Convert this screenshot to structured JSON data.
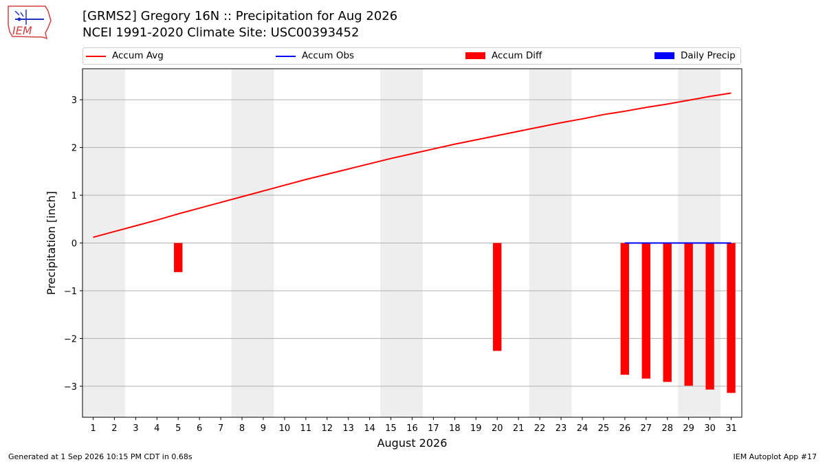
{
  "logo": {
    "text": "IEM"
  },
  "header": {
    "title_line1": "[GRMS2] Gregory 16N :: Precipitation for Aug 2026",
    "title_line2": "NCEI 1991-2020 Climate Site: USC00393452"
  },
  "legend": [
    {
      "label": "Accum Avg",
      "kind": "line",
      "color": "#ff0000"
    },
    {
      "label": "Accum Obs",
      "kind": "line",
      "color": "#0000ff"
    },
    {
      "label": "Accum Diff",
      "kind": "patch",
      "color": "#ff0000"
    },
    {
      "label": "Daily Precip",
      "kind": "patch",
      "color": "#0000ff"
    }
  ],
  "footer": {
    "left": "Generated at 1 Sep 2026 10:15 PM CDT in 0.68s",
    "right": "IEM Autoplot App #17"
  },
  "chart_data": {
    "type": "line",
    "xlabel": "August 2026",
    "ylabel": "Precipitation [inch]",
    "xlim": [
      0.5,
      31.5
    ],
    "ylim": [
      -3.65,
      3.65
    ],
    "x_ticks": [
      1,
      2,
      3,
      4,
      5,
      6,
      7,
      8,
      9,
      10,
      11,
      12,
      13,
      14,
      15,
      16,
      17,
      18,
      19,
      20,
      21,
      22,
      23,
      24,
      25,
      26,
      27,
      28,
      29,
      30,
      31
    ],
    "y_ticks": [
      -3,
      -2,
      -1,
      0,
      1,
      2,
      3
    ],
    "y_tick_labels": [
      "−3",
      "−2",
      "−1",
      "0",
      "1",
      "2",
      "3"
    ],
    "grid": "horizontal",
    "legend_position": "top",
    "weekend_shading": [
      [
        0.5,
        2.5
      ],
      [
        7.5,
        9.5
      ],
      [
        14.5,
        16.5
      ],
      [
        21.5,
        23.5
      ],
      [
        28.5,
        30.5
      ]
    ],
    "series": [
      {
        "name": "Accum Avg",
        "kind": "line",
        "color": "#ff0000",
        "x": [
          1,
          2,
          3,
          4,
          5,
          6,
          7,
          8,
          9,
          10,
          11,
          12,
          13,
          14,
          15,
          16,
          17,
          18,
          19,
          20,
          21,
          22,
          23,
          24,
          25,
          26,
          27,
          28,
          29,
          30,
          31
        ],
        "values": [
          0.12,
          0.24,
          0.36,
          0.48,
          0.61,
          0.73,
          0.85,
          0.97,
          1.09,
          1.21,
          1.33,
          1.44,
          1.55,
          1.66,
          1.77,
          1.87,
          1.97,
          2.07,
          2.16,
          2.25,
          2.34,
          2.43,
          2.52,
          2.6,
          2.69,
          2.76,
          2.84,
          2.91,
          2.99,
          3.07,
          3.14
        ]
      },
      {
        "name": "Accum Obs",
        "kind": "line",
        "color": "#0000ff",
        "x": [
          26,
          27,
          28,
          29,
          30,
          31
        ],
        "values": [
          0,
          0,
          0,
          0,
          0,
          0
        ]
      },
      {
        "name": "Accum Diff",
        "kind": "bar",
        "color": "#ff0000",
        "x": [
          5,
          20,
          26,
          27,
          28,
          29,
          30,
          31
        ],
        "values": [
          -0.61,
          -2.26,
          -2.76,
          -2.84,
          -2.91,
          -2.99,
          -3.07,
          -3.14
        ]
      },
      {
        "name": "Daily Precip",
        "kind": "bar",
        "color": "#0000ff",
        "x": [],
        "values": []
      }
    ]
  }
}
